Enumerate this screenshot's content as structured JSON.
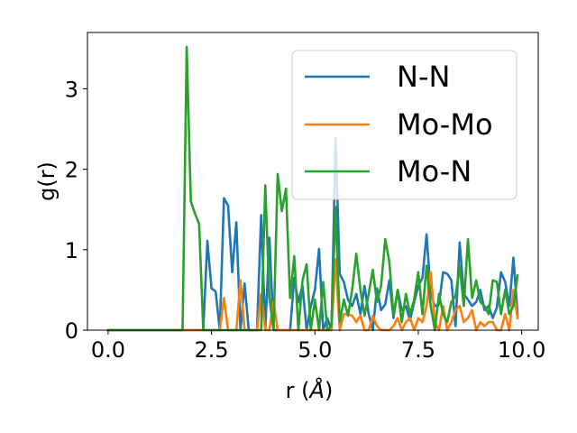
{
  "chart_data": {
    "type": "line",
    "xlabel": "r (Å)",
    "xlabel_main": "r (",
    "xlabel_unit": "Å",
    "xlabel_close": ")",
    "ylabel": "g(r)",
    "xlim": [
      -0.5,
      10.4
    ],
    "ylim": [
      0,
      3.7
    ],
    "xticks": [
      0.0,
      2.5,
      5.0,
      7.5,
      10.0
    ],
    "xtick_labels": [
      "0.0",
      "2.5",
      "5.0",
      "7.5",
      "10.0"
    ],
    "yticks": [
      0,
      1,
      2,
      3
    ],
    "ytick_labels": [
      "0",
      "1",
      "2",
      "3"
    ],
    "grid": false,
    "legend_position": "top-right",
    "x": [
      0.0,
      0.1,
      0.2,
      0.3,
      0.4,
      0.5,
      0.6,
      0.7,
      0.8,
      0.9,
      1.0,
      1.1,
      1.2,
      1.3,
      1.4,
      1.5,
      1.6,
      1.7,
      1.8,
      1.9,
      2.0,
      2.1,
      2.2,
      2.3,
      2.4,
      2.5,
      2.6,
      2.7,
      2.8,
      2.9,
      3.0,
      3.1,
      3.2,
      3.3,
      3.4,
      3.5,
      3.6,
      3.7,
      3.8,
      3.9,
      4.0,
      4.1,
      4.2,
      4.3,
      4.4,
      4.5,
      4.6,
      4.7,
      4.8,
      4.9,
      5.0,
      5.1,
      5.2,
      5.3,
      5.4,
      5.5,
      5.6,
      5.7,
      5.8,
      5.9,
      6.0,
      6.1,
      6.2,
      6.3,
      6.4,
      6.5,
      6.6,
      6.7,
      6.8,
      6.9,
      7.0,
      7.1,
      7.2,
      7.3,
      7.4,
      7.5,
      7.6,
      7.7,
      7.8,
      7.9,
      8.0,
      8.1,
      8.2,
      8.3,
      8.4,
      8.5,
      8.6,
      8.7,
      8.8,
      8.9,
      9.0,
      9.1,
      9.2,
      9.3,
      9.4,
      9.5,
      9.6,
      9.7,
      9.8,
      9.9
    ],
    "series": [
      {
        "name": "N-N",
        "color": "#1f77b4",
        "values": [
          0,
          0,
          0,
          0,
          0,
          0,
          0,
          0,
          0,
          0,
          0,
          0,
          0,
          0,
          0,
          0,
          0,
          0,
          0,
          0,
          0,
          0,
          0,
          0,
          1.11,
          0.52,
          0.48,
          0,
          1.64,
          1.55,
          0.72,
          1.34,
          0,
          0.58,
          0,
          0,
          0,
          1.43,
          0,
          1.15,
          0,
          0,
          0,
          0,
          0,
          0.65,
          0.35,
          0.55,
          0,
          0.3,
          0.5,
          1.01,
          0,
          0.15,
          0,
          2.39,
          0.7,
          0.6,
          0.38,
          0.3,
          0.45,
          0.2,
          0.55,
          0.2,
          0,
          0.52,
          0.25,
          0.32,
          0.62,
          0.15,
          0.5,
          0.25,
          0.3,
          0.12,
          0.35,
          0.55,
          0.65,
          1.19,
          0.45,
          0.3,
          0.32,
          0.72,
          0.7,
          0.62,
          0.05,
          1.09,
          0.45,
          0.38,
          0.3,
          0.35,
          0.5,
          0.25,
          0.3,
          0.15,
          0.28,
          0.72,
          0.6,
          0.3,
          0.9,
          0.2
        ]
      },
      {
        "name": "Mo-Mo",
        "color": "#ff7f0e",
        "values": [
          0,
          0,
          0,
          0,
          0,
          0,
          0,
          0,
          0,
          0,
          0,
          0,
          0,
          0,
          0,
          0,
          0,
          0,
          0,
          0,
          0,
          0,
          0,
          0,
          0,
          0,
          0,
          0,
          0.4,
          0,
          0,
          0,
          0.62,
          0,
          0,
          0,
          0,
          0.45,
          0,
          0,
          0.36,
          0,
          0,
          0,
          0,
          0,
          0,
          0,
          0,
          0,
          0,
          0,
          0,
          0,
          0,
          0.88,
          0,
          0.2,
          0.2,
          0.18,
          0.1,
          0.18,
          0,
          0,
          0.18,
          0.05,
          0,
          0,
          0,
          0.05,
          0.15,
          0,
          0.1,
          0.15,
          0,
          0.15,
          0.1,
          0.3,
          0.72,
          0.1,
          0,
          0.3,
          0,
          0.1,
          0.25,
          0.3,
          0.1,
          0.15,
          0.25,
          0,
          0.1,
          0.05,
          0.1,
          0.1,
          0,
          0,
          0.2,
          0,
          0.5,
          0.15
        ]
      },
      {
        "name": "Mo-N",
        "color": "#2ca02c",
        "values": [
          0,
          0,
          0,
          0,
          0,
          0,
          0,
          0,
          0,
          0,
          0,
          0,
          0,
          0,
          0,
          0,
          0,
          0,
          0,
          3.52,
          1.6,
          1.45,
          1.32,
          0,
          0,
          0,
          0,
          0,
          0,
          0,
          0,
          0,
          0,
          0,
          0,
          0,
          0,
          0,
          1.8,
          0.4,
          0,
          1.94,
          1.48,
          1.76,
          0.4,
          0.92,
          0,
          0.62,
          0.82,
          0,
          0.38,
          0,
          0.6,
          0,
          0.05,
          1.53,
          0.1,
          0.38,
          0.18,
          0.5,
          0.95,
          0.5,
          0.18,
          0.45,
          0.75,
          0.35,
          0.55,
          1.13,
          0.85,
          0.18,
          0.5,
          0.1,
          0.45,
          0.2,
          0.38,
          0.72,
          0.2,
          0.8,
          0.3,
          0,
          0.45,
          0.2,
          0.1,
          0.35,
          0.42,
          0.8,
          0.3,
          1.13,
          0.4,
          0.62,
          0.35,
          0.3,
          0.2,
          0.62,
          0.6,
          0.2,
          0.5,
          0.2,
          0.3,
          0.68
        ]
      }
    ]
  }
}
